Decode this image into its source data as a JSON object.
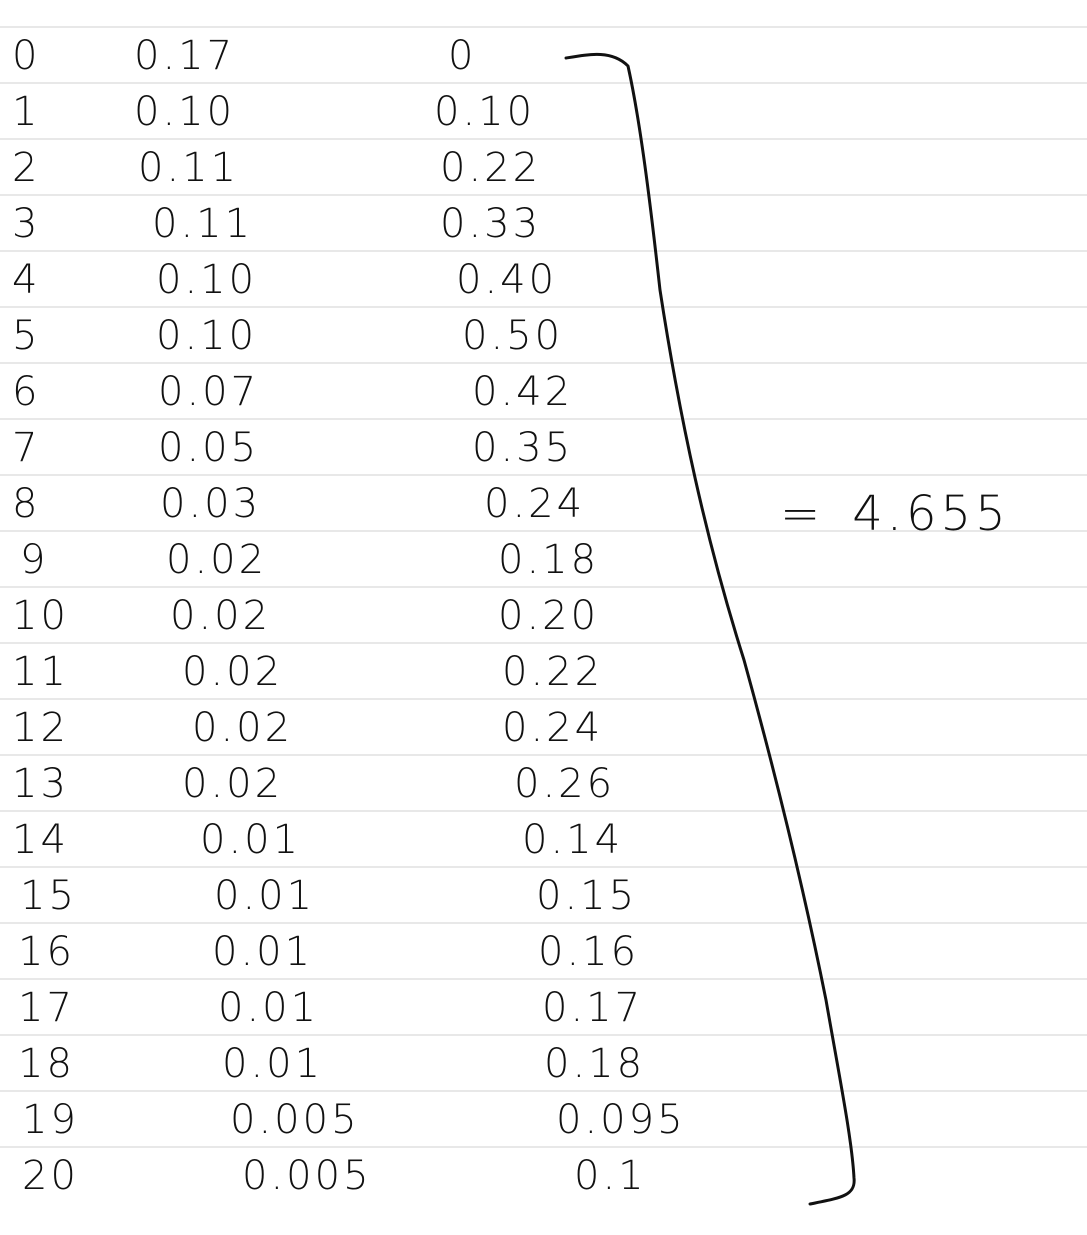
{
  "note": {
    "rows": [
      {
        "k": "0",
        "p": "0.17",
        "xp": "0"
      },
      {
        "k": "1",
        "p": "0.10",
        "xp": "0.10"
      },
      {
        "k": "2",
        "p": "0.11",
        "xp": "0.22"
      },
      {
        "k": "3",
        "p": "0.11",
        "xp": "0.33"
      },
      {
        "k": "4",
        "p": "0.10",
        "xp": "0.40"
      },
      {
        "k": "5",
        "p": "0.10",
        "xp": "0.50"
      },
      {
        "k": "6",
        "p": "0.07",
        "xp": "0.42"
      },
      {
        "k": "7",
        "p": "0.05",
        "xp": "0.35"
      },
      {
        "k": "8",
        "p": "0.03",
        "xp": "0.24"
      },
      {
        "k": "9",
        "p": "0.02",
        "xp": "0.18"
      },
      {
        "k": "10",
        "p": "0.02",
        "xp": "0.20"
      },
      {
        "k": "11",
        "p": "0.02",
        "xp": "0.22"
      },
      {
        "k": "12",
        "p": "0.02",
        "xp": "0.24"
      },
      {
        "k": "13",
        "p": "0.02",
        "xp": "0.26"
      },
      {
        "k": "14",
        "p": "0.01",
        "xp": "0.14"
      },
      {
        "k": "15",
        "p": "0.01",
        "xp": "0.15"
      },
      {
        "k": "16",
        "p": "0.01",
        "xp": "0.16"
      },
      {
        "k": "17",
        "p": "0.01",
        "xp": "0.17"
      },
      {
        "k": "18",
        "p": "0.01",
        "xp": "0.18"
      },
      {
        "k": "19",
        "p": "0.005",
        "xp": "0.095"
      },
      {
        "k": "20",
        "p": "0.005",
        "xp": "0.1"
      }
    ],
    "total_sign": "=",
    "total_value": "4.655",
    "ink_color": "#111111",
    "rule_color": "#d9d9d9"
  }
}
